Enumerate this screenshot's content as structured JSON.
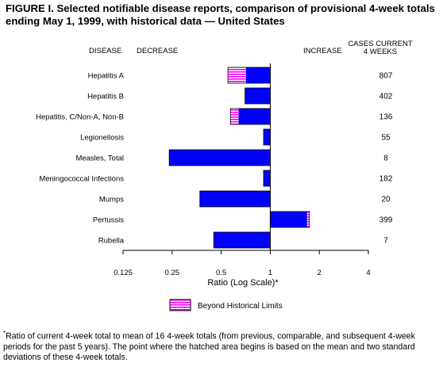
{
  "title": {
    "line1": "FIGURE I. Selected notifiable disease reports, comparison of provisional 4-week totals",
    "line2": "ending May 1, 1999, with historical data — United States"
  },
  "headers": {
    "disease": "DISEASE",
    "decrease": "DECREASE",
    "increase": "INCREASE",
    "cases_line1": "CASES CURRENT",
    "cases_line2": "4 WEEKS"
  },
  "legend": {
    "label": "Beyond Historical Limits"
  },
  "footnote": {
    "mark": "*",
    "text": "Ratio of current 4-week total to mean of 16 4-week totals (from previous, comparable, and subsequent 4-week periods for the past 5 years). The point where the hatched area begins is based on the mean and two standard deviations of these 4-week totals."
  },
  "colors": {
    "bar": "#0000ff",
    "hatch": "#ff00ff",
    "hatch_bg": "#ffffff",
    "border": "#000000"
  },
  "chart_data": {
    "type": "bar",
    "orientation": "horizontal",
    "scale": "log2",
    "baseline": 1,
    "xlabel": "Ratio (Log Scale)*",
    "xlim": [
      0.125,
      4
    ],
    "xticks": [
      0.125,
      0.25,
      0.5,
      1,
      2,
      4
    ],
    "xtick_labels": [
      "0.125",
      "0.25",
      "0.5",
      "1",
      "2",
      "4"
    ],
    "categories": [
      "Hepatitis A",
      "Hepatitis B",
      "Hepatitis, C/Non-A, Non-B",
      "Legionellosis",
      "Measles, Total",
      "Meningococcal Infections",
      "Mumps",
      "Pertussis",
      "Rubella"
    ],
    "values": [
      0.55,
      0.7,
      0.57,
      0.91,
      0.24,
      0.91,
      0.37,
      1.74,
      0.45
    ],
    "historical_limit": [
      0.71,
      null,
      0.64,
      null,
      null,
      null,
      null,
      1.68,
      null
    ],
    "cases_current_4_weeks": [
      "807",
      "402",
      "136",
      "55",
      "8",
      "182",
      "20",
      "399",
      "7"
    ]
  }
}
